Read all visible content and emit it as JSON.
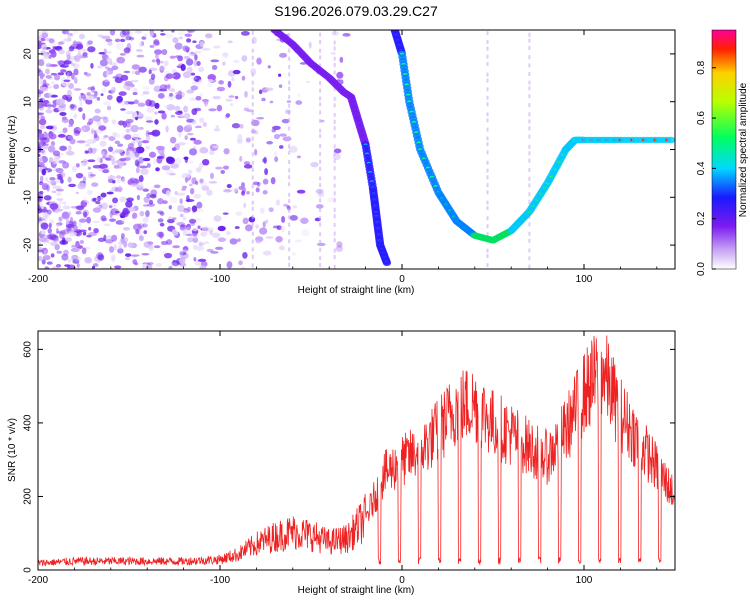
{
  "title": "S196.2026.079.03.29.C27",
  "chart_data": [
    {
      "type": "heatmap",
      "xlabel": "Height of straight line (km)",
      "ylabel": "Frequency (Hz)",
      "xlim": [
        -200,
        150
      ],
      "ylim": [
        -25,
        25
      ],
      "xticks": [
        -200,
        -100,
        0,
        100
      ],
      "yticks": [
        -20,
        -10,
        0,
        10,
        20
      ],
      "colorbar": {
        "label": "Normalized spectral amplitude",
        "range": [
          0,
          0.95
        ],
        "ticks": [
          0.0,
          0.2,
          0.4,
          0.6,
          0.8
        ]
      },
      "trace": {
        "x": [
          -70,
          -60,
          -50,
          -40,
          -32,
          -28,
          -24,
          -20,
          -16,
          -14,
          -12,
          -8,
          -4,
          0,
          4,
          10,
          20,
          30,
          40,
          50,
          60,
          70,
          80,
          90,
          95,
          100,
          120,
          150
        ],
        "y": [
          25,
          22,
          18,
          15,
          12,
          11,
          6,
          1,
          -8,
          -14,
          -20,
          -24,
          25,
          20,
          10,
          0,
          -9,
          -15,
          -18,
          -19,
          -17,
          -13,
          -7,
          0,
          2,
          2,
          2,
          2
        ]
      }
    },
    {
      "type": "line",
      "xlabel": "Height of straight line (km)",
      "ylabel": "SNR (10 * v/v)",
      "xlim": [
        -200,
        150
      ],
      "ylim": [
        0,
        650
      ],
      "xticks": [
        -200,
        -100,
        0,
        100
      ],
      "yticks": [
        0,
        200,
        400,
        600
      ],
      "series": [
        {
          "name": "SNR",
          "x": [
            -200,
            -180,
            -160,
            -140,
            -120,
            -100,
            -90,
            -80,
            -70,
            -60,
            -50,
            -40,
            -30,
            -20,
            -10,
            0,
            10,
            20,
            30,
            40,
            50,
            60,
            70,
            80,
            90,
            100,
            110,
            120,
            130,
            140,
            150
          ],
          "values": [
            20,
            25,
            25,
            25,
            25,
            30,
            45,
            75,
            95,
            110,
            100,
            80,
            90,
            150,
            280,
            320,
            350,
            410,
            480,
            490,
            430,
            400,
            360,
            330,
            410,
            520,
            590,
            460,
            380,
            300,
            220
          ]
        }
      ]
    }
  ]
}
